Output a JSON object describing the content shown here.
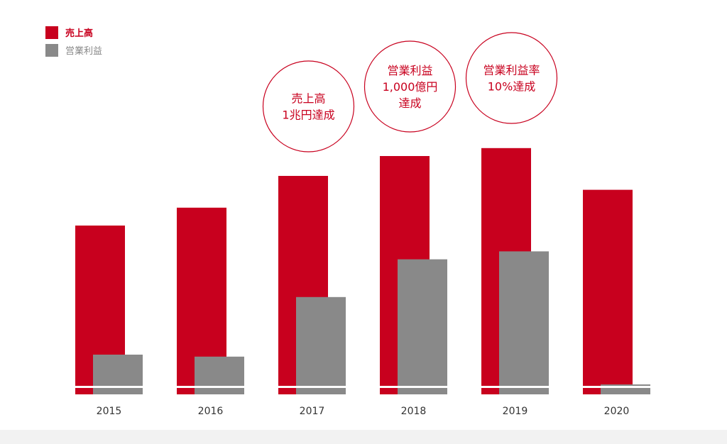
{
  "chart_data": {
    "type": "bar",
    "categories": [
      "2015",
      "2016",
      "2017",
      "2018",
      "2019",
      "2020"
    ],
    "series": [
      {
        "name": "売上高",
        "color": "#c8001e",
        "values": [
          85,
          94,
          110,
          120,
          124,
          103
        ]
      },
      {
        "name": "営業利益",
        "color": "#898989",
        "values": [
          20,
          19,
          49,
          68,
          72,
          5
        ]
      }
    ],
    "ylim": [
      0,
      140
    ],
    "grid": false,
    "legend": "top-left",
    "annotations": [
      {
        "category": "2017",
        "lines": [
          "売上高",
          "1兆円達成"
        ]
      },
      {
        "category": "2018",
        "lines": [
          "営業利益",
          "1,000億円",
          "達成"
        ]
      },
      {
        "category": "2019",
        "lines": [
          "営業利益率",
          "10%達成"
        ]
      }
    ],
    "annotation_color": "#c8001e"
  }
}
